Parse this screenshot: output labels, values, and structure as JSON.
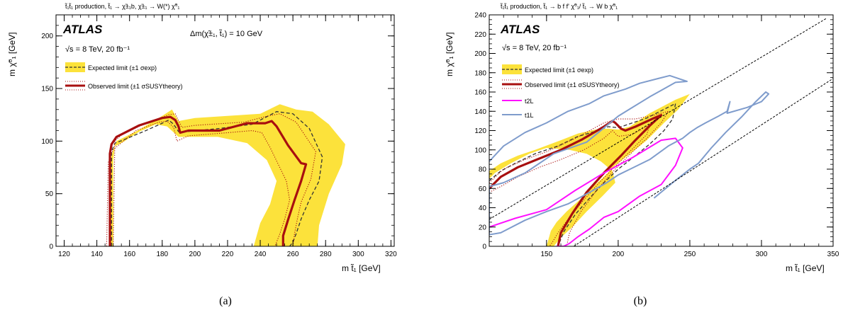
{
  "panel_a": {
    "process": "t̃₁t̃₁ production, t̃₁ → χ̃±₁b, χ̃±₁ → W(*) χ̃⁰₁",
    "atlas": "ATLAS",
    "energy": "√s = 8 TeV, 20 fb⁻¹",
    "mass_splitting": "Δm(χ̃±₁, t̃₁) = 10 GeV",
    "legend": [
      "Expected limit (±1 σexp)",
      "Observed limit (±1 σSUSYtheory)"
    ],
    "xlabel": "m t̃₁ [GeV]",
    "ylabel": "m χ̃⁰₁ [GeV]",
    "sublabel": "(a)"
  },
  "panel_b": {
    "process": "t̃₁t̃₁ production, t̃₁ → b f f' χ̃⁰₁/ t̃₁ → W b χ̃⁰₁",
    "atlas": "ATLAS",
    "energy": "√s = 8 TeV, 20 fb⁻¹",
    "legend": [
      "Expected limit (±1 σexp)",
      "Observed limit (±1 σSUSYtheory)",
      "t2L",
      "t1L"
    ],
    "xlabel": "m t̃₁ [GeV]",
    "ylabel": "m χ̃⁰₁ [GeV]",
    "sublabel": "(b)"
  },
  "colors": {
    "band": "#fce23b",
    "observed": "#a80f0f",
    "expected": "#333333",
    "t2L": "#ff10ff",
    "t1L": "#7f9ccc",
    "frame": "#000000"
  },
  "chart_data": [
    {
      "type": "line",
      "xlim": [
        115,
        322
      ],
      "ylim": [
        0,
        220
      ],
      "xticks": [
        120,
        140,
        160,
        180,
        200,
        220,
        240,
        260,
        280,
        300,
        320
      ],
      "yticks": [
        0,
        50,
        100,
        150,
        200
      ],
      "grid": false,
      "legend_position": "top-left",
      "series": [
        {
          "name": "Expected limit (±1 σexp)",
          "style": "band",
          "x": [
            148,
            148,
            150,
            152,
            165,
            180,
            186,
            190,
            200,
            220,
            240,
            252,
            262,
            272,
            282,
            292,
            290,
            282,
            276,
            275,
            236,
            240,
            246,
            250,
            244,
            232,
            214,
            200,
            190,
            183,
            176,
            166,
            156,
            151,
            150,
            150
          ],
          "y": [
            0,
            80,
            92,
            100,
            110,
            124,
            130,
            119,
            122,
            124,
            126,
            135,
            130,
            128,
            116,
            97,
            78,
            50,
            20,
            0,
            0,
            22,
            40,
            62,
            82,
            98,
            104,
            104,
            104,
            114,
            116,
            109,
            99,
            95,
            82,
            0
          ]
        },
        {
          "name": "Expected limit (±1 σexp)",
          "style": "dashed",
          "x": [
            149,
            149,
            151,
            156,
            170,
            180,
            184,
            187,
            190,
            195,
            215,
            235,
            245,
            250,
            260,
            270,
            278,
            276,
            270,
            265,
            262,
            260,
            258
          ],
          "y": [
            0,
            90,
            98,
            101,
            110,
            117,
            120,
            116,
            109,
            109,
            112,
            116,
            124,
            128,
            126,
            112,
            85,
            62,
            44,
            26,
            12,
            4,
            0
          ]
        },
        {
          "name": "Observed limit (±1 σSUSYtheory)",
          "style": "solid",
          "x": [
            148,
            148,
            149,
            152,
            166,
            180,
            185,
            188,
            190,
            191,
            196,
            215,
            232,
            240,
            243,
            247,
            250,
            257,
            265,
            268,
            265,
            261,
            257,
            254,
            254
          ],
          "y": [
            0,
            88,
            97,
            104,
            115,
            122,
            123,
            120,
            114,
            108,
            110,
            110,
            117,
            117,
            117,
            119,
            114,
            96,
            79,
            78,
            62,
            44,
            25,
            10,
            0
          ]
        },
        {
          "name": "Observed limit (±1 σSUSYtheory)",
          "style": "dotted-upper",
          "x": [
            150,
            151,
            155,
            170,
            184,
            188,
            192,
            200,
            230,
            245,
            252,
            262,
            274,
            271,
            265,
            263,
            261,
            260
          ],
          "y": [
            0,
            100,
            106,
            117,
            125,
            126,
            113,
            115,
            118,
            124,
            126,
            118,
            90,
            64,
            42,
            28,
            12,
            0
          ]
        },
        {
          "name": "Observed limit (±1 σSUSYtheory)",
          "style": "dotted-lower",
          "x": [
            146,
            147,
            150,
            164,
            178,
            183,
            187,
            189,
            196,
            220,
            235,
            241,
            246,
            251,
            256,
            258,
            255,
            252,
            250,
            249
          ],
          "y": [
            0,
            80,
            92,
            110,
            118,
            119,
            113,
            100,
            105,
            108,
            110,
            108,
            94,
            78,
            62,
            44,
            26,
            12,
            4,
            0
          ]
        }
      ]
    },
    {
      "type": "line",
      "xlim": [
        110,
        350
      ],
      "ylim": [
        0,
        240
      ],
      "xticks": [
        150,
        200,
        250,
        300,
        350
      ],
      "yticks": [
        0,
        20,
        40,
        60,
        80,
        100,
        120,
        140,
        160,
        180,
        200,
        220,
        240
      ],
      "grid": false,
      "legend_position": "top-left",
      "series": [
        {
          "name": "Expected limit (±1 σexp)",
          "style": "band",
          "x": [
            110,
            118,
            130,
            142,
            160,
            172,
            184,
            193,
            200,
            208,
            222,
            240,
            250,
            242,
            232,
            220,
            210,
            198,
            190,
            181,
            173,
            164,
            157,
            153,
            150,
            155,
            160,
            168,
            178,
            189,
            198,
            196,
            188,
            178,
            166,
            150,
            138,
            125,
            114,
            110
          ],
          "y": [
            78,
            86,
            94,
            100,
            110,
            117,
            121,
            122,
            121,
            124,
            138,
            152,
            158,
            142,
            128,
            110,
            98,
            84,
            72,
            60,
            48,
            36,
            25,
            16,
            0,
            0,
            9,
            20,
            36,
            52,
            66,
            78,
            88,
            96,
            100,
            102,
            96,
            86,
            76,
            70
          ]
        },
        {
          "name": "Expected limit (±1 σexp)",
          "style": "dashed",
          "x": [
            110,
            118,
            128,
            142,
            158,
            172,
            186,
            193,
            200,
            220,
            240,
            238,
            232,
            222,
            212,
            200,
            190,
            180,
            170,
            162,
            158
          ],
          "y": [
            68,
            78,
            86,
            96,
            104,
            114,
            120,
            124,
            123,
            133,
            148,
            132,
            120,
            106,
            94,
            80,
            66,
            50,
            33,
            15,
            0
          ]
        },
        {
          "name": "Observed limit (±1 σSUSYtheory)",
          "style": "solid",
          "x": [
            110,
            118,
            130,
            145,
            160,
            175,
            190,
            196,
            198,
            202,
            205,
            212,
            225,
            230,
            222,
            212,
            202,
            190,
            178,
            168,
            160,
            158
          ],
          "y": [
            60,
            72,
            82,
            91,
            100,
            111,
            124,
            130,
            128,
            122,
            120,
            124,
            133,
            136,
            125,
            110,
            94,
            76,
            56,
            34,
            14,
            0
          ]
        },
        {
          "name": "Observed limit (±1 σSUSYtheory)",
          "style": "dotted-upper",
          "x": [
            110,
            120,
            135,
            150,
            170,
            190,
            200,
            212,
            225,
            235,
            230,
            220,
            210,
            198,
            186,
            174,
            166,
            164
          ],
          "y": [
            66,
            80,
            90,
            98,
            112,
            128,
            132,
            132,
            136,
            140,
            128,
            112,
            98,
            80,
            60,
            36,
            14,
            0
          ]
        },
        {
          "name": "Observed limit (±1 σSUSYtheory)",
          "style": "dotted-lower",
          "x": [
            110,
            118,
            130,
            145,
            160,
            176,
            190,
            196,
            200,
            210,
            222,
            220,
            212,
            200,
            188,
            176,
            166,
            158,
            154,
            152
          ],
          "y": [
            56,
            62,
            72,
            82,
            90,
            100,
            112,
            120,
            114,
            116,
            126,
            116,
            104,
            86,
            68,
            48,
            30,
            14,
            4,
            0
          ]
        },
        {
          "name": "t2L",
          "style": "solid",
          "x": [
            110,
            128,
            150,
            170,
            190,
            210,
            230,
            240,
            245,
            240,
            230,
            215,
            200,
            190,
            180,
            172,
            166,
            162,
            159,
            157
          ],
          "y": [
            20,
            29,
            38,
            58,
            76,
            92,
            110,
            112,
            102,
            84,
            64,
            52,
            36,
            30,
            18,
            10,
            3,
            0,
            0,
            0
          ]
        },
        {
          "name": "t1L",
          "style": "solid",
          "x": [
            110,
            120,
            135,
            150,
            165,
            180,
            190,
            205,
            215,
            228,
            236,
            242,
            248,
            240,
            222,
            200,
            178,
            155,
            135,
            120,
            110,
            110,
            118,
            135,
            150,
            165,
            180,
            192,
            200,
            222,
            235,
            245,
            250,
            255,
            261,
            270,
            276,
            278,
            276,
            290,
            300,
            305,
            303,
            296,
            286,
            275,
            265,
            256,
            250,
            238,
            225
          ],
          "y": [
            88,
            104,
            118,
            128,
            140,
            148,
            156,
            163,
            169,
            174,
            177,
            174,
            171,
            170,
            155,
            135,
            108,
            96,
            76,
            66,
            62,
            12,
            14,
            27,
            36,
            44,
            56,
            66,
            74,
            90,
            104,
            112,
            118,
            123,
            128,
            135,
            140,
            150,
            138,
            144,
            150,
            158,
            160,
            150,
            134,
            118,
            102,
            86,
            80,
            66,
            50
          ]
        },
        {
          "name": "",
          "style": "kinematic-1",
          "x": [
            110,
            345
          ],
          "y": [
            28,
            236
          ]
        },
        {
          "name": "",
          "style": "kinematic-2",
          "x": [
            169,
            350
          ],
          "y": [
            0,
            174
          ]
        }
      ]
    }
  ]
}
